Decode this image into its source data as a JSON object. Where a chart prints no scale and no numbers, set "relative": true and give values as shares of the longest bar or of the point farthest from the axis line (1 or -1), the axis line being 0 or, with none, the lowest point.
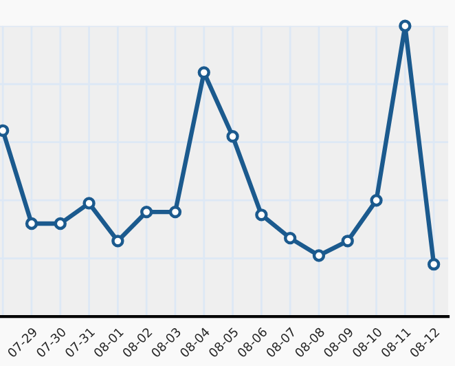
{
  "chart_data": {
    "type": "line",
    "relative": true,
    "categories": [
      null,
      "07-29",
      "07-30",
      "07-31",
      "08-01",
      "08-02",
      "08-03",
      "08-04",
      "08-05",
      "08-06",
      "08-07",
      "08-08",
      "08-09",
      "08-10",
      "08-11",
      "08-12"
    ],
    "series": [
      {
        "color": "#1b5a8e",
        "values": [
          0.64,
          0.32,
          0.32,
          0.39,
          0.26,
          0.36,
          0.36,
          0.84,
          0.62,
          0.35,
          0.27,
          0.21,
          0.26,
          0.4,
          1,
          0.18
        ]
      }
    ],
    "marker": "circle",
    "line_style": "solid",
    "grid": true,
    "legend": false,
    "tick_labels": "x"
  }
}
